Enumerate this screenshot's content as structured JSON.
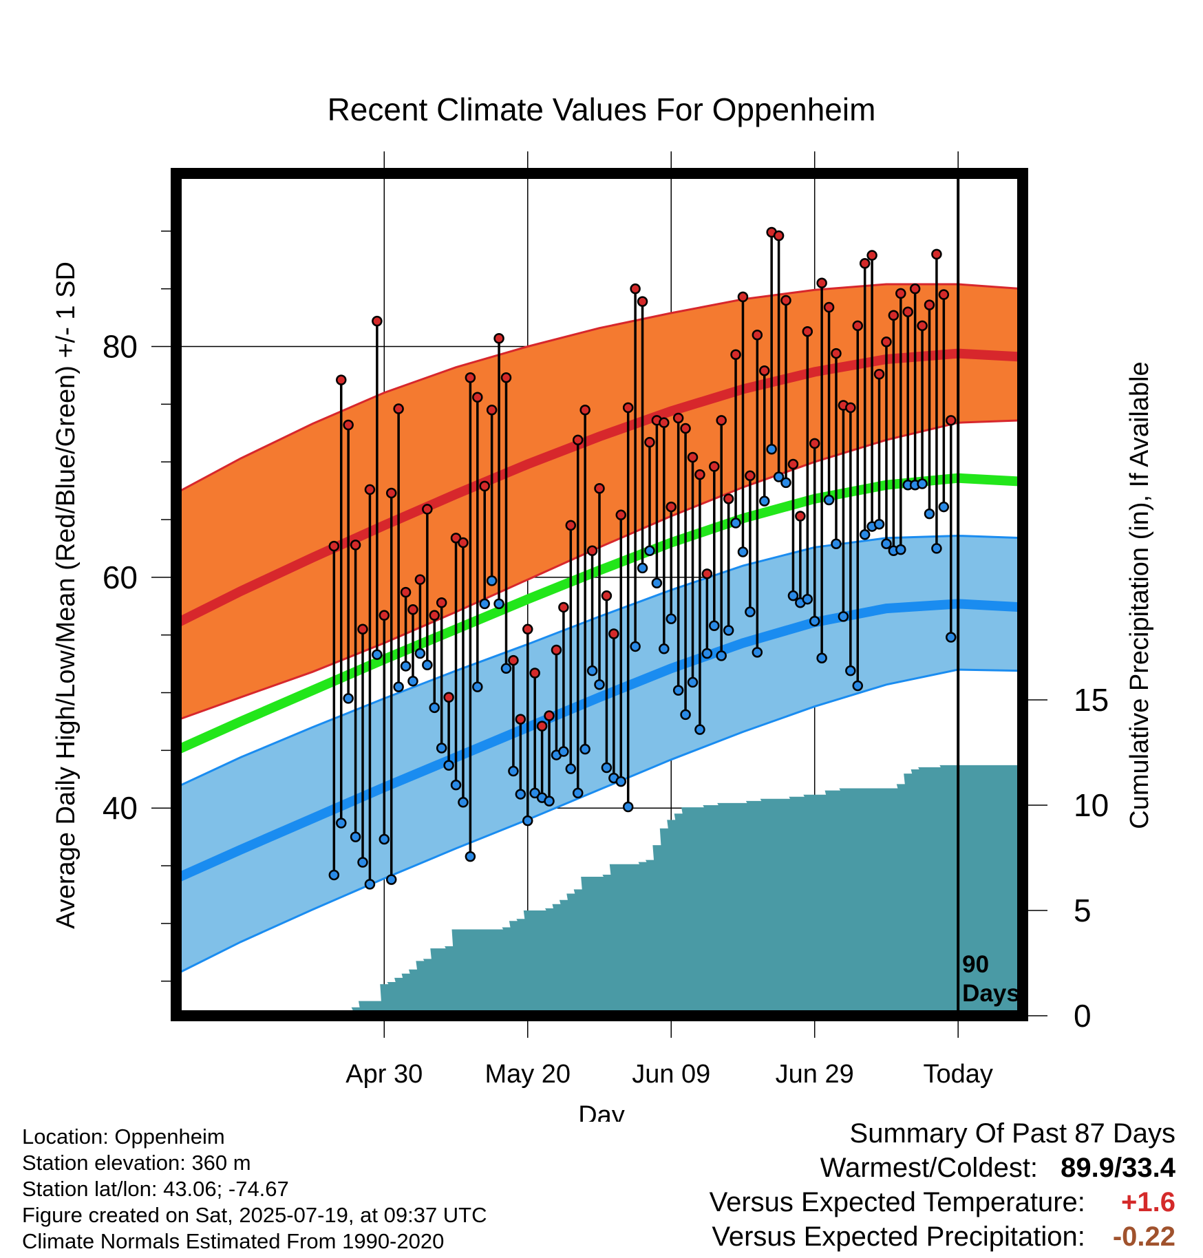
{
  "chart_data": {
    "type": "line",
    "title": "Recent Climate Values For Oppenheim",
    "xlabel": "Day",
    "ylabel": "Average Daily High/Low/Mean (Red/Blue/Green) +/- 1 SD",
    "y2label": "Cumulative Precipitation (in), If Available",
    "ylim": [
      22,
      95
    ],
    "y2lim": [
      0,
      40
    ],
    "xlim": [
      -109,
      9
    ],
    "x_ticks": [
      {
        "label": "Apr 30",
        "day": -80
      },
      {
        "label": "May 20",
        "day": -60
      },
      {
        "label": "Jun 09",
        "day": -40
      },
      {
        "label": "Jun 29",
        "day": -20
      },
      {
        "label": "Today",
        "day": 0
      }
    ],
    "y_ticks": [
      40,
      60,
      80
    ],
    "y2_ticks": [
      0,
      5,
      10,
      15
    ],
    "grid": true,
    "today_marker_label_line1": "90",
    "today_marker_label_line2": "Days",
    "colors": {
      "high_band": "#f47a30",
      "high_line": "#d7272c",
      "low_band": "#80c0e8",
      "low_line": "#1a8cf0",
      "mean_line": "#22e61a",
      "precip": "#4a9aa5",
      "high_dot": "#d42a2a",
      "low_dot": "#2a8ae6"
    },
    "normals": {
      "days": [
        -109,
        -100,
        -90,
        -80,
        -70,
        -60,
        -50,
        -40,
        -30,
        -20,
        -10,
        0,
        9
      ],
      "high_mean": [
        56.0,
        58.8,
        61.7,
        64.5,
        67.2,
        69.8,
        72.2,
        74.4,
        76.3,
        77.8,
        78.9,
        79.4,
        79.1
      ],
      "high_upper": [
        67.3,
        70.3,
        73.3,
        76.0,
        78.2,
        80.0,
        81.6,
        82.9,
        84.1,
        84.9,
        85.4,
        85.4,
        85.0
      ],
      "high_lower": [
        47.6,
        49.6,
        51.8,
        54.3,
        57.0,
        59.8,
        62.6,
        65.3,
        67.8,
        70.0,
        71.9,
        73.4,
        73.6
      ],
      "low_mean": [
        33.9,
        36.4,
        39.1,
        41.8,
        44.4,
        47.0,
        49.6,
        52.1,
        54.3,
        56.1,
        57.3,
        57.7,
        57.4
      ],
      "low_upper": [
        41.8,
        44.4,
        47.0,
        49.5,
        51.9,
        54.2,
        56.6,
        58.9,
        61.0,
        62.6,
        63.4,
        63.6,
        63.4
      ],
      "low_lower": [
        25.6,
        28.4,
        31.2,
        33.9,
        36.5,
        39.0,
        41.6,
        44.2,
        46.6,
        48.8,
        50.7,
        52.0,
        51.9
      ],
      "mean_mean": [
        45.0,
        47.5,
        50.2,
        52.9,
        55.5,
        58.1,
        60.6,
        63.0,
        65.1,
        66.8,
        68.0,
        68.6,
        68.3
      ]
    },
    "series": [
      {
        "name": "High",
        "days": [
          -87,
          -86,
          -85,
          -84,
          -83,
          -82,
          -81,
          -80,
          -79,
          -78,
          -77,
          -76,
          -75,
          -74,
          -73,
          -72,
          -71,
          -70,
          -69,
          -68,
          -67,
          -66,
          -65,
          -64,
          -63,
          -62,
          -61,
          -60,
          -59,
          -58,
          -57,
          -56,
          -55,
          -54,
          -53,
          -52,
          -51,
          -50,
          -49,
          -48,
          -47,
          -46,
          -45,
          -44,
          -43,
          -42,
          -41,
          -40,
          -39,
          -38,
          -37,
          -36,
          -35,
          -34,
          -33,
          -32,
          -31,
          -30,
          -29,
          -28,
          -27,
          -26,
          -25,
          -24,
          -23,
          -22,
          -21,
          -20,
          -19,
          -18,
          -17,
          -16,
          -15,
          -14,
          -13,
          -12,
          -11,
          -10,
          -9,
          -8,
          -7,
          -6,
          -5,
          -4,
          -3,
          -2,
          -1
        ],
        "values": [
          62.7,
          77.1,
          73.2,
          62.8,
          55.5,
          67.6,
          82.2,
          56.7,
          67.3,
          74.6,
          58.7,
          57.2,
          59.8,
          65.9,
          56.7,
          57.8,
          49.6,
          63.4,
          63.0,
          77.3,
          75.6,
          67.9,
          74.5,
          80.7,
          77.3,
          52.8,
          47.7,
          55.5,
          51.7,
          47.1,
          48.0,
          53.7,
          57.4,
          64.5,
          71.9,
          74.5,
          62.3,
          67.7,
          58.4,
          55.1,
          65.4,
          74.7,
          85.0,
          83.9,
          71.7,
          73.6,
          73.4,
          66.1,
          73.8,
          72.9,
          70.4,
          68.9,
          60.3,
          69.6,
          73.6,
          66.8,
          79.3,
          84.3,
          68.8,
          81.0,
          77.9,
          89.9,
          89.6,
          84.0,
          69.8,
          65.3,
          81.3,
          71.6,
          85.5,
          83.4,
          79.4,
          74.9,
          74.7,
          81.8,
          87.2,
          87.9,
          77.6,
          80.4,
          82.7,
          84.6,
          83.0,
          85.0,
          81.8,
          83.6,
          88.0,
          84.5,
          73.6
        ]
      },
      {
        "name": "Low",
        "days": [
          -87,
          -86,
          -85,
          -84,
          -83,
          -82,
          -81,
          -80,
          -79,
          -78,
          -77,
          -76,
          -75,
          -74,
          -73,
          -72,
          -71,
          -70,
          -69,
          -68,
          -67,
          -66,
          -65,
          -64,
          -63,
          -62,
          -61,
          -60,
          -59,
          -58,
          -57,
          -56,
          -55,
          -54,
          -53,
          -52,
          -51,
          -50,
          -49,
          -48,
          -47,
          -46,
          -45,
          -44,
          -43,
          -42,
          -41,
          -40,
          -39,
          -38,
          -37,
          -36,
          -35,
          -34,
          -33,
          -32,
          -31,
          -30,
          -29,
          -28,
          -27,
          -26,
          -25,
          -24,
          -23,
          -22,
          -21,
          -20,
          -19,
          -18,
          -17,
          -16,
          -15,
          -14,
          -13,
          -12,
          -11,
          -10,
          -9,
          -8,
          -7,
          -6,
          -5,
          -4,
          -3,
          -2,
          -1
        ],
        "values": [
          34.2,
          38.7,
          49.5,
          37.5,
          35.3,
          33.4,
          53.3,
          37.3,
          33.8,
          50.5,
          52.3,
          51.0,
          53.4,
          52.4,
          48.7,
          45.2,
          43.7,
          42.0,
          40.5,
          35.8,
          50.5,
          57.7,
          59.7,
          57.7,
          52.1,
          43.2,
          41.2,
          38.9,
          41.3,
          40.9,
          40.6,
          44.6,
          44.9,
          43.4,
          41.3,
          45.1,
          51.9,
          50.7,
          43.5,
          42.6,
          42.3,
          40.1,
          54.0,
          60.8,
          62.3,
          59.5,
          53.8,
          56.4,
          50.2,
          48.1,
          50.9,
          46.8,
          53.4,
          55.8,
          53.2,
          55.4,
          64.7,
          62.2,
          57.0,
          53.5,
          66.6,
          71.1,
          68.7,
          68.2,
          58.4,
          57.8,
          58.1,
          56.2,
          53.0,
          66.7,
          62.9,
          56.6,
          51.9,
          50.6,
          63.7,
          64.4,
          64.6,
          62.9,
          62.3,
          62.4,
          68.0,
          68.0,
          68.1,
          65.5,
          62.5,
          66.1,
          54.8
        ]
      },
      {
        "name": "Cumulative Precipitation",
        "days": [
          -84,
          -83,
          -82,
          -81,
          -80,
          -79,
          -78,
          -77,
          -76,
          -75,
          -74,
          -73,
          -72,
          -71,
          -70,
          -69,
          -68,
          -67,
          -66,
          -65,
          -64,
          -63,
          -62,
          -61,
          -60,
          -59,
          -58,
          -57,
          -56,
          -55,
          -54,
          -53,
          -52,
          -51,
          -50,
          -49,
          -48,
          -47,
          -46,
          -45,
          -44,
          -43,
          -42,
          -41,
          -40,
          -39,
          -38,
          -37,
          -36,
          -35,
          -34,
          -33,
          -32,
          -31,
          -30,
          -29,
          -28,
          -27,
          -26,
          -25,
          -24,
          -23,
          -22,
          -21,
          -20,
          -19,
          -18,
          -17,
          -16,
          -15,
          -14,
          -13,
          -12,
          -11,
          -10,
          -9,
          -8,
          -7,
          -6,
          -5,
          -4,
          -3,
          -2,
          -1,
          0,
          9
        ],
        "values": [
          0.4,
          0.7,
          0.7,
          0.7,
          1.5,
          1.6,
          1.8,
          2.0,
          2.2,
          2.6,
          2.7,
          3.2,
          3.2,
          3.3,
          4.1,
          4.1,
          4.1,
          4.1,
          4.1,
          4.1,
          4.1,
          4.2,
          4.5,
          4.6,
          5.0,
          5.0,
          5.0,
          5.1,
          5.3,
          5.5,
          5.8,
          6.0,
          6.6,
          6.6,
          6.6,
          6.7,
          7.2,
          7.2,
          7.2,
          7.2,
          7.3,
          7.4,
          8.1,
          8.9,
          9.3,
          9.6,
          9.9,
          9.9,
          9.9,
          10.0,
          10.0,
          10.1,
          10.1,
          10.1,
          10.1,
          10.2,
          10.2,
          10.3,
          10.3,
          10.3,
          10.3,
          10.4,
          10.4,
          10.5,
          10.5,
          10.5,
          10.7,
          10.7,
          10.8,
          10.8,
          10.8,
          10.8,
          10.8,
          10.8,
          10.8,
          10.8,
          11.0,
          11.5,
          11.7,
          11.8,
          11.8,
          11.8,
          11.9,
          11.9,
          11.9,
          11.9
        ]
      }
    ]
  },
  "footer_left": {
    "location": "Location: Oppenheim",
    "elevation": "Station elevation: 360 m",
    "latlon": "Station lat/lon: 43.06; -74.67",
    "created": "Figure created on Sat, 2025-07-19, at 09:37 UTC",
    "normals": "Climate Normals Estimated From 1990-2020"
  },
  "summary": {
    "heading": "Summary Of Past 87 Days",
    "warm_cold_label": "Warmest/Coldest:",
    "warm_cold_value": "89.9/33.4",
    "temp_label": "Versus Expected Temperature:",
    "temp_value": "+1.6",
    "temp_color": "#d42a2a",
    "precip_label": "Versus Expected Precipitation:",
    "precip_value": "-0.22",
    "precip_color": "#a0522d"
  }
}
